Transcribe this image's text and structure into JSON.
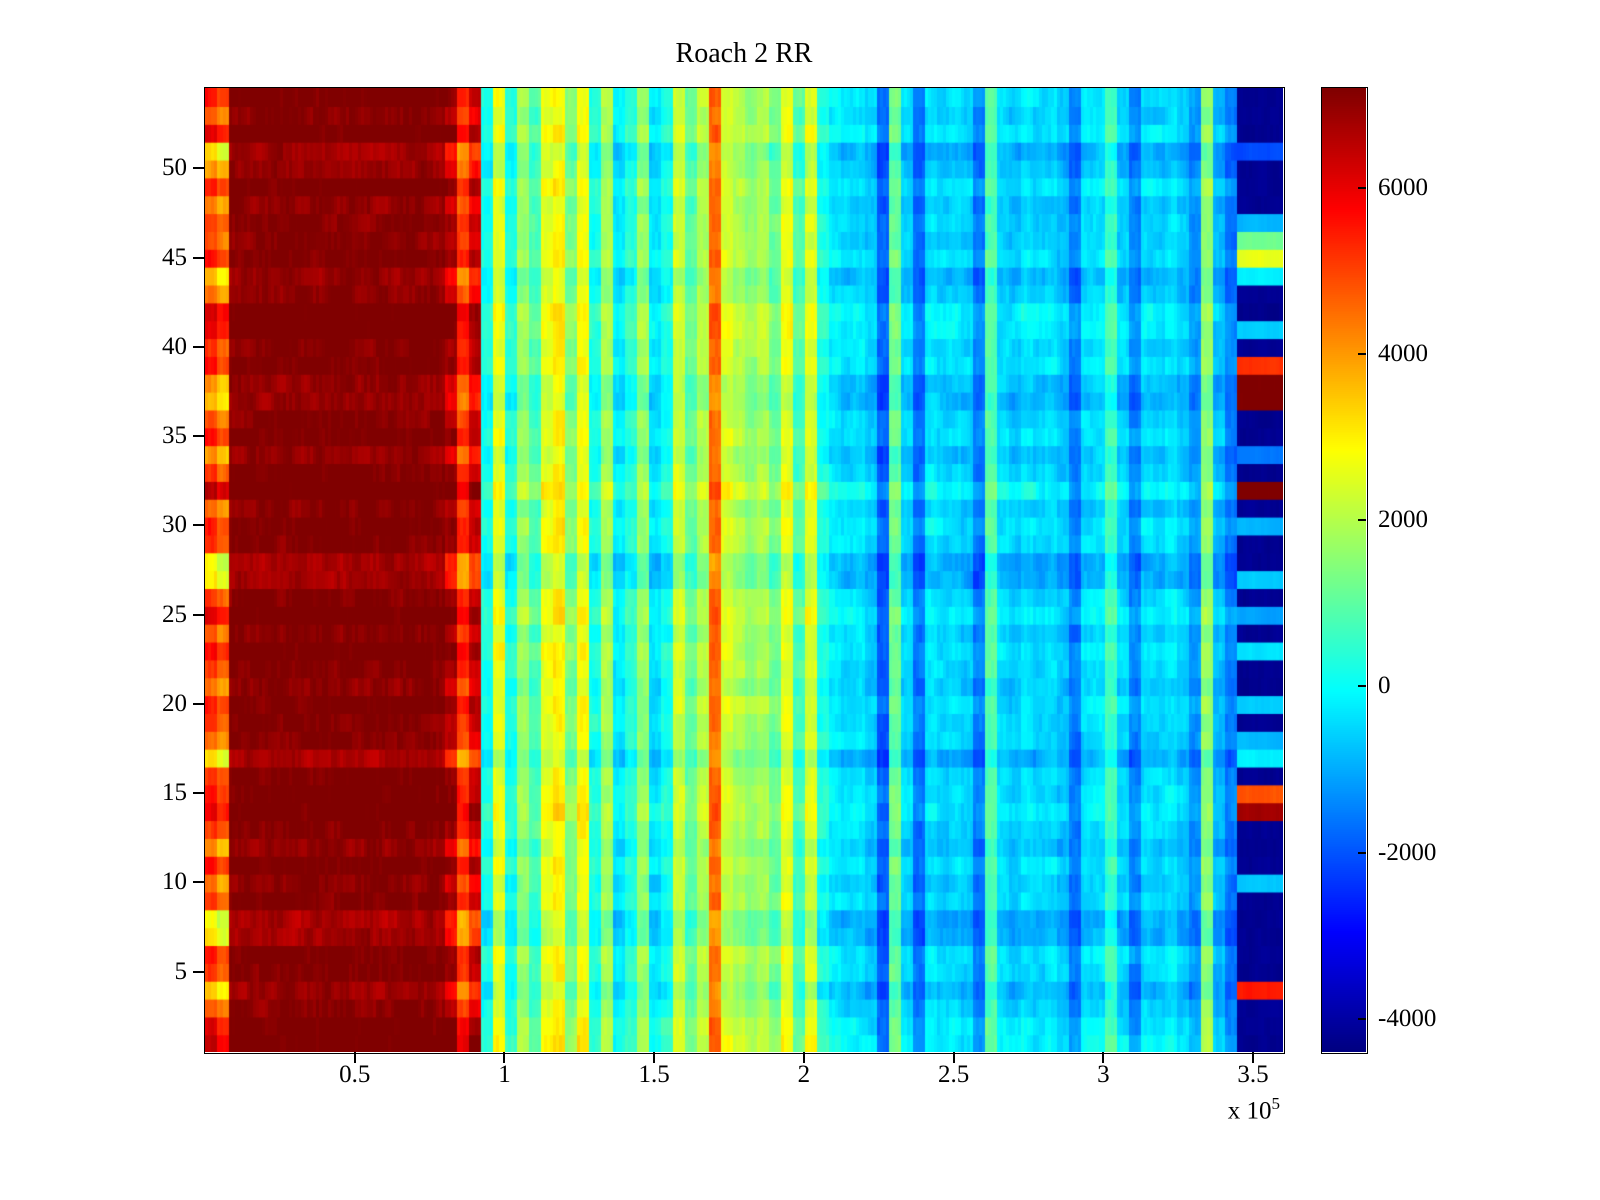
{
  "chart_data": {
    "type": "heatmap",
    "title": "Roach 2 RR",
    "x_axis": {
      "range": [
        0,
        360000
      ],
      "tick_values": [
        50000,
        100000,
        150000,
        200000,
        250000,
        300000,
        350000
      ],
      "tick_labels": [
        "0.5",
        "1",
        "1.5",
        "2",
        "2.5",
        "3",
        "3.5"
      ],
      "exponent_base": "x 10",
      "exponent_power": "5"
    },
    "y_axis": {
      "range": [
        0.5,
        54.5
      ],
      "tick_values": [
        5,
        10,
        15,
        20,
        25,
        30,
        35,
        40,
        45,
        50
      ],
      "tick_labels": [
        "5",
        "10",
        "15",
        "20",
        "25",
        "30",
        "35",
        "40",
        "45",
        "50"
      ]
    },
    "colorbar": {
      "colormap": "jet",
      "min": -4400,
      "max": 7200,
      "tick_values": [
        -4000,
        -2000,
        0,
        2000,
        4000,
        6000
      ],
      "tick_labels": [
        "-4000",
        "-2000",
        "0",
        "2000",
        "4000",
        "6000"
      ]
    },
    "grid": {
      "n_rows": 54,
      "n_cols": 90,
      "column_base_values": [
        5200,
        4600,
        7200,
        7200,
        7200,
        7200,
        7200,
        7200,
        7200,
        7200,
        7200,
        7200,
        7200,
        7200,
        7200,
        7200,
        7200,
        7200,
        7200,
        7100,
        6800,
        5200,
        6300,
        200,
        2600,
        300,
        1700,
        800,
        2600,
        3000,
        1400,
        2800,
        300,
        1900,
        -200,
        400,
        1700,
        -300,
        200,
        2300,
        1100,
        2000,
        4600,
        2400,
        2000,
        1600,
        1900,
        1200,
        2600,
        800,
        2400,
        300,
        -200,
        -400,
        -300,
        -600,
        -1800,
        1200,
        -500,
        -1600,
        -300,
        -500,
        -400,
        -600,
        -1500,
        900,
        -400,
        -600,
        -300,
        -500,
        -400,
        -700,
        -1500,
        -400,
        -300,
        700,
        -500,
        -1400,
        -400,
        -500,
        -300,
        -600,
        -1200,
        1600,
        -800,
        -1500,
        -4200,
        -4200,
        -4200,
        -4200
      ],
      "column_row_amplification": [
        4,
        4,
        0.8,
        0.8,
        0.8,
        0.8,
        0.8,
        0.8,
        0.8,
        0.8,
        0.8,
        0.8,
        0.8,
        0.8,
        0.8,
        0.8,
        0.8,
        0.8,
        0.8,
        0.8,
        2.5,
        2.5,
        2.5,
        1,
        1,
        1,
        1,
        1,
        1,
        1,
        1,
        1,
        1,
        1,
        1,
        1,
        1,
        1,
        1,
        1,
        1,
        1,
        1,
        1,
        1,
        1,
        1,
        1,
        1,
        1,
        1,
        1,
        1,
        1,
        1,
        1,
        1,
        1,
        1,
        1,
        1,
        1,
        1,
        1,
        1,
        1,
        1,
        1,
        1,
        1,
        1,
        1,
        1,
        1,
        1,
        1,
        1,
        1,
        1,
        1,
        1,
        1,
        1,
        1,
        1,
        1,
        0,
        0,
        0,
        0
      ],
      "row_offsets": [
        300,
        200,
        -100,
        -400,
        0,
        100,
        -500,
        -600,
        0,
        -200,
        100,
        -300,
        0,
        200,
        100,
        0,
        -550,
        -100,
        0,
        100,
        -200,
        0,
        150,
        -100,
        250,
        0,
        -500,
        -600,
        0,
        100,
        -150,
        400,
        0,
        -300,
        100,
        -100,
        -400,
        -300,
        100,
        0,
        200,
        300,
        -200,
        -400,
        100,
        -100,
        0,
        -200,
        100,
        -300,
        -500,
        200,
        -100,
        100
      ],
      "right_band_start_col": 86,
      "right_band_default": -4200,
      "right_band_row_overrides": {
        "4": 5500,
        "10": -700,
        "14": 6800,
        "15": 4800,
        "17": -200,
        "18": -900,
        "20": -600,
        "23": -400,
        "25": -1100,
        "27": -600,
        "30": -900,
        "32": 7200,
        "34": -1600,
        "37": 7200,
        "38": 7200,
        "39": 5200,
        "41": -600,
        "44": -200,
        "45": 2600,
        "46": 1200,
        "47": -900,
        "51": -2100
      },
      "noise_amplitude": 550
    }
  }
}
